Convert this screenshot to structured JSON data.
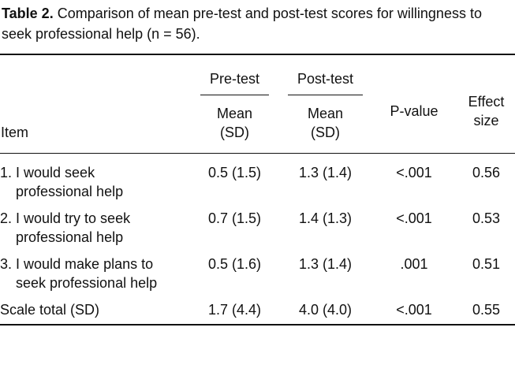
{
  "caption": {
    "label": "Table 2.",
    "text": "Comparison of mean pre-test and post-test scores for willingness to seek professional help (n = 56)."
  },
  "table": {
    "header": {
      "item": "Item",
      "groups": [
        "Pre-test",
        "Post-test"
      ],
      "subheaders": [
        "Mean (SD)",
        "Mean (SD)"
      ],
      "p_value": "P-value",
      "effect_size": "Effect size"
    },
    "rows": [
      [
        "1. I would seek professional help",
        "0.5 (1.5)",
        "1.3 (1.4)",
        "<.001",
        "0.56"
      ],
      [
        "2. I would try to seek professional help",
        "0.7 (1.5)",
        "1.4 (1.3)",
        "<.001",
        "0.53"
      ],
      [
        "3. I would make plans to seek professional help",
        "0.5 (1.6)",
        "1.3 (1.4)",
        ".001",
        "0.51"
      ],
      [
        "Scale total (SD)",
        "1.7 (4.4)",
        "4.0 (4.0)",
        "<.001",
        "0.55"
      ]
    ]
  }
}
